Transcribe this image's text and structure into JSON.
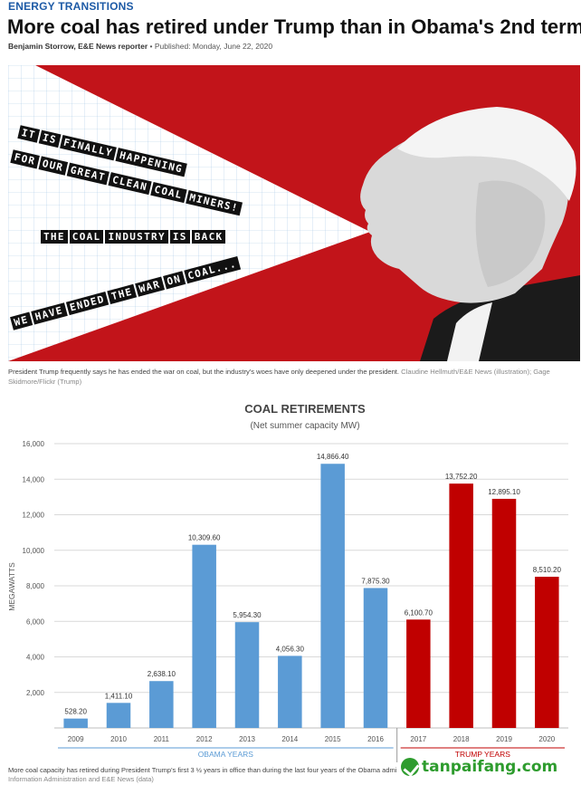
{
  "article": {
    "kicker": "ENERGY TRANSITIONS",
    "headline": "More coal has retired under Trump than in Obama's 2nd term",
    "author": "Benjamin Storrow, E&E News reporter",
    "published": "Published: Monday, June 22, 2020",
    "photo_caption": "President Trump frequently says he has ended the war on coal, but the industry's woes have only deepened under the president.",
    "photo_credit": "Claudine Hellmuth/E&E News (illustration); Gage Skidmore/Flickr (Trump)",
    "chart_caption": "More coal capacity has retired during President Trump's first 3 ½ years in office than during the last four years of the Obama admi",
    "chart_credit": "Information Administration and E&E News (data)"
  },
  "illustration": {
    "quotes": [
      [
        "IT",
        "IS",
        "FINALLY",
        "HAPPENING"
      ],
      [
        "FOR",
        "OUR",
        "GREAT",
        "CLEAN",
        "COAL",
        "MINERS!"
      ],
      [
        "THE",
        "COAL",
        "INDUSTRY",
        "IS",
        "BACK"
      ],
      [
        "WE",
        "HAVE",
        "ENDED",
        "THE",
        "WAR",
        "ON",
        "COAL..."
      ]
    ]
  },
  "watermark": "tanpaifang.com",
  "colors": {
    "obama": "#5b9bd5",
    "trump": "#c00000",
    "hero_red": "#c2141a"
  },
  "chart_data": {
    "type": "bar",
    "title": "COAL RETIREMENTS",
    "subtitle": "(Net summer capacity MW)",
    "ylabel": "MEGAWATTS",
    "ylim": [
      0,
      16000
    ],
    "yticks": [
      2000,
      4000,
      6000,
      8000,
      10000,
      12000,
      14000,
      16000
    ],
    "ytick_labels": [
      "2,000",
      "4,000",
      "6,000",
      "8,000",
      "10,000",
      "12,000",
      "14,000",
      "16,000"
    ],
    "categories": [
      "2009",
      "2010",
      "2011",
      "2012",
      "2013",
      "2014",
      "2015",
      "2016",
      "2017",
      "2018",
      "2019",
      "2020"
    ],
    "values": [
      528.2,
      1411.1,
      2638.1,
      10309.6,
      5954.3,
      4056.3,
      14866.4,
      7875.3,
      6100.7,
      13752.2,
      12895.1,
      8510.2
    ],
    "value_labels": [
      "528.20",
      "1,411.10",
      "2,638.10",
      "10,309.60",
      "5,954.30",
      "4,056.30",
      "14,866.40",
      "7,875.30",
      "6,100.70",
      "13,752.20",
      "12,895.10",
      "8,510.20"
    ],
    "groups": [
      {
        "name": "OBAMA YEARS",
        "from": 0,
        "to": 7,
        "color": "#5b9bd5"
      },
      {
        "name": "TRUMP YEARS",
        "from": 8,
        "to": 11,
        "color": "#c00000"
      }
    ],
    "grid": true,
    "legend": "none"
  }
}
